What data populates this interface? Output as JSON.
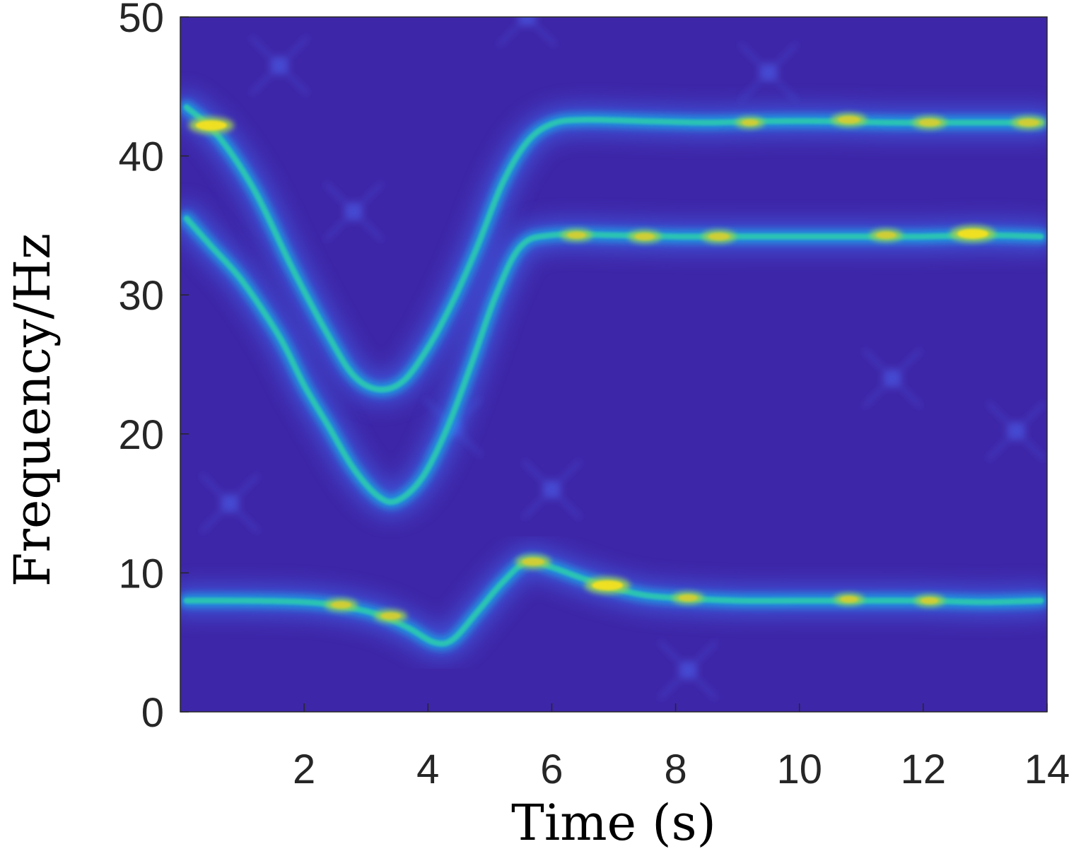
{
  "chart_data": {
    "type": "heatmap",
    "title": "",
    "xlabel": "Time (s)",
    "ylabel": "Frequency/Hz",
    "xlim": [
      0,
      14
    ],
    "ylim": [
      0,
      50
    ],
    "xticks": [
      2,
      4,
      6,
      8,
      10,
      12,
      14
    ],
    "yticks": [
      0,
      10,
      20,
      30,
      40,
      50
    ],
    "colormap": "parula",
    "background_color": "#3E26A8",
    "colorbar": false,
    "grid": false,
    "ridges": [
      {
        "points": [
          [
            0.1,
            43.5
          ],
          [
            0.6,
            41.5
          ],
          [
            1.2,
            37.5
          ],
          [
            1.8,
            32
          ],
          [
            2.4,
            27
          ],
          [
            2.8,
            24.2
          ],
          [
            3.2,
            23.2
          ],
          [
            3.6,
            23.8
          ],
          [
            4.0,
            26.2
          ],
          [
            4.4,
            29.5
          ],
          [
            4.8,
            33.5
          ],
          [
            5.2,
            38
          ],
          [
            5.6,
            41
          ],
          [
            6.0,
            42.3
          ],
          [
            6.5,
            42.6
          ],
          [
            7.5,
            42.5
          ],
          [
            8.5,
            42.4
          ],
          [
            9.5,
            42.5
          ],
          [
            10.5,
            42.5
          ],
          [
            11.5,
            42.4
          ],
          [
            12.5,
            42.4
          ],
          [
            13.5,
            42.4
          ],
          [
            13.9,
            42.4
          ]
        ],
        "hotspots": [
          [
            0.5,
            42.2,
            1.0
          ],
          [
            10.8,
            42.6,
            0.6
          ],
          [
            12.1,
            42.4,
            0.55
          ],
          [
            13.7,
            42.4,
            0.55
          ],
          [
            9.2,
            42.4,
            0.35
          ]
        ]
      },
      {
        "points": [
          [
            0.1,
            35.5
          ],
          [
            0.5,
            33.5
          ],
          [
            1.0,
            31
          ],
          [
            1.6,
            27
          ],
          [
            2.0,
            23.5
          ],
          [
            2.4,
            20.5
          ],
          [
            2.8,
            17.5
          ],
          [
            3.2,
            15.5
          ],
          [
            3.5,
            15.2
          ],
          [
            3.9,
            16.8
          ],
          [
            4.3,
            20.3
          ],
          [
            4.7,
            25
          ],
          [
            5.1,
            30
          ],
          [
            5.5,
            33.5
          ],
          [
            6.0,
            34.3
          ],
          [
            7.0,
            34.3
          ],
          [
            8.0,
            34.2
          ],
          [
            9.0,
            34.2
          ],
          [
            10.0,
            34.2
          ],
          [
            11.0,
            34.2
          ],
          [
            12.0,
            34.2
          ],
          [
            13.0,
            34.3
          ],
          [
            13.9,
            34.2
          ]
        ],
        "hotspots": [
          [
            12.8,
            34.4,
            1.0
          ],
          [
            8.7,
            34.2,
            0.55
          ],
          [
            7.5,
            34.2,
            0.5
          ],
          [
            11.4,
            34.3,
            0.5
          ],
          [
            6.4,
            34.3,
            0.45
          ]
        ]
      },
      {
        "points": [
          [
            0.1,
            8.0
          ],
          [
            1.0,
            8.0
          ],
          [
            2.0,
            7.9
          ],
          [
            2.6,
            7.6
          ],
          [
            3.2,
            7.0
          ],
          [
            3.7,
            6.0
          ],
          [
            4.1,
            5.0
          ],
          [
            4.4,
            5.2
          ],
          [
            4.8,
            7.2
          ],
          [
            5.2,
            9.3
          ],
          [
            5.6,
            10.8
          ],
          [
            6.0,
            10.4
          ],
          [
            6.5,
            9.6
          ],
          [
            7.0,
            8.9
          ],
          [
            7.5,
            8.4
          ],
          [
            8.0,
            8.2
          ],
          [
            9.0,
            8.0
          ],
          [
            10.0,
            8.0
          ],
          [
            11.0,
            8.0
          ],
          [
            12.0,
            8.0
          ],
          [
            13.0,
            7.9
          ],
          [
            13.9,
            8.0
          ]
        ],
        "hotspots": [
          [
            6.9,
            9.1,
            1.0
          ],
          [
            2.6,
            7.7,
            0.5
          ],
          [
            3.4,
            6.9,
            0.5
          ],
          [
            5.7,
            10.8,
            0.6
          ],
          [
            8.2,
            8.2,
            0.45
          ],
          [
            10.8,
            8.1,
            0.4
          ],
          [
            12.1,
            8.0,
            0.4
          ]
        ]
      }
    ],
    "background_speckles": [
      [
        1.6,
        46.5
      ],
      [
        2.8,
        36
      ],
      [
        4.4,
        20.5
      ],
      [
        13.5,
        20.2
      ],
      [
        8.2,
        3.0
      ],
      [
        0.8,
        15
      ],
      [
        6.0,
        16
      ],
      [
        11.5,
        24
      ],
      [
        9.5,
        46
      ],
      [
        5.6,
        50
      ]
    ]
  }
}
